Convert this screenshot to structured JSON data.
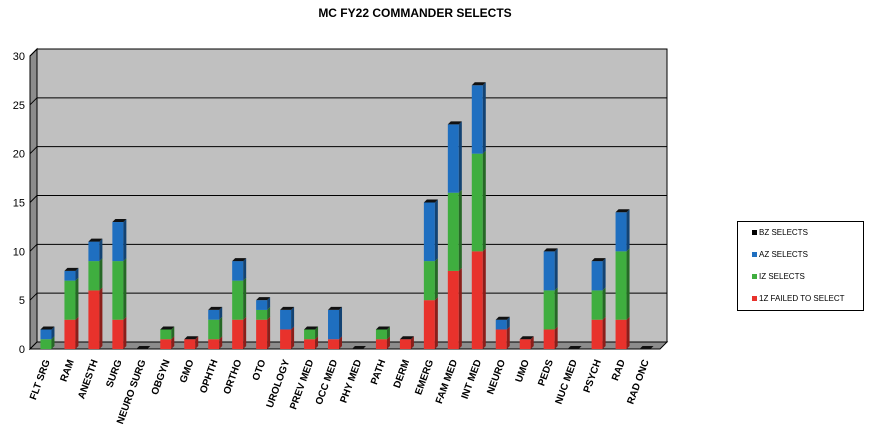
{
  "chart_data": {
    "type": "bar",
    "stacked": true,
    "title": "MC FY22 COMMANDER SELECTS",
    "xlabel": "",
    "ylabel": "",
    "ylim": [
      0,
      30
    ],
    "yticks": [
      0,
      5,
      10,
      15,
      20,
      25,
      30
    ],
    "grid": true,
    "legend_position": "right",
    "categories": [
      "FLT SRG",
      "RAM",
      "ANESTH",
      "SURG",
      "NEURO SURG",
      "OBGYN",
      "GMO",
      "OPHTH",
      "ORTHO",
      "OTO",
      "UROLOGY",
      "PREV MED",
      "OCC MED",
      "PHY MED",
      "PATH",
      "DERM",
      "EMERG",
      "FAM MED",
      "INT MED",
      "NEURO",
      "UMO",
      "PEDS",
      "NUC MED",
      "PSYCH",
      "RAD",
      "RAD ONC"
    ],
    "series": [
      {
        "name": "1Z FAILED TO SELECT",
        "color": "#e8322c",
        "values": [
          0,
          3,
          6,
          3,
          0,
          1,
          1,
          1,
          3,
          3,
          2,
          1,
          1,
          0,
          1,
          1,
          5,
          8,
          10,
          2,
          1,
          2,
          0,
          3,
          3,
          0
        ]
      },
      {
        "name": "IZ SELECTS",
        "color": "#3fae3f",
        "values": [
          1,
          4,
          3,
          6,
          0,
          1,
          0,
          2,
          4,
          1,
          0,
          1,
          0,
          0,
          1,
          0,
          4,
          8,
          10,
          0,
          0,
          4,
          0,
          3,
          7,
          0
        ]
      },
      {
        "name": "AZ SELECTS",
        "color": "#1f6fc0",
        "values": [
          1,
          1,
          2,
          4,
          0,
          0,
          0,
          1,
          2,
          1,
          2,
          0,
          3,
          0,
          0,
          0,
          6,
          7,
          7,
          1,
          0,
          4,
          0,
          3,
          4,
          0
        ]
      },
      {
        "name": "BZ SELECTS",
        "color": "#000000",
        "values": [
          0,
          0,
          0,
          0,
          0,
          0,
          0,
          0,
          0,
          0,
          0,
          0,
          0,
          0,
          0,
          0,
          0,
          0,
          0,
          0,
          0,
          0,
          0,
          0,
          0,
          0
        ]
      }
    ],
    "legend_order": [
      "BZ SELECTS",
      "AZ SELECTS",
      "IZ SELECTS",
      "1Z FAILED TO SELECT"
    ]
  }
}
